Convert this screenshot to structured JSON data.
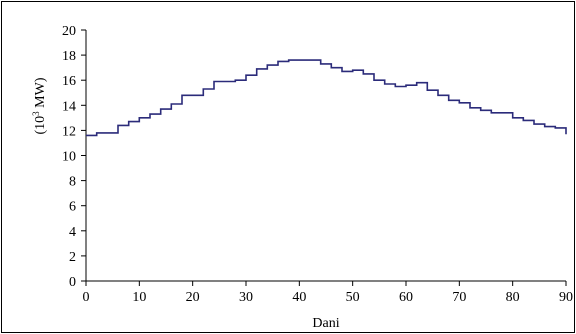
{
  "chart_data": {
    "type": "line",
    "step": true,
    "title": "",
    "xlabel": "Dani",
    "ylabel": "(10³ MW)",
    "ylabel_parts": {
      "prefix": "(10",
      "sup": "3",
      "suffix": " MW)"
    },
    "xlim": [
      0,
      90
    ],
    "ylim": [
      0,
      20
    ],
    "xticks": [
      0,
      10,
      20,
      30,
      40,
      50,
      60,
      70,
      80,
      90
    ],
    "yticks": [
      0,
      2,
      4,
      6,
      8,
      10,
      12,
      14,
      16,
      18,
      20
    ],
    "grid": false,
    "legend": "none",
    "colors": {
      "line": "#2b2b7a",
      "axis": "#000000",
      "frame": "#000000"
    },
    "series": [
      {
        "x": [
          0,
          2,
          6,
          8,
          10,
          12,
          14,
          16,
          18,
          20,
          22,
          24,
          28,
          30,
          32,
          34,
          36,
          38,
          42,
          44,
          46,
          48,
          50,
          52,
          54,
          56,
          58,
          60,
          62,
          64,
          66,
          68,
          70,
          72,
          74,
          76,
          80,
          82,
          84,
          86,
          88,
          90
        ],
        "values": [
          11.6,
          11.8,
          12.4,
          12.7,
          13.0,
          13.3,
          13.7,
          14.1,
          14.8,
          14.8,
          15.3,
          15.9,
          16.0,
          16.4,
          16.9,
          17.2,
          17.5,
          17.6,
          17.6,
          17.3,
          17.0,
          16.7,
          16.8,
          16.5,
          16.0,
          15.7,
          15.5,
          15.6,
          15.8,
          15.2,
          14.8,
          14.4,
          14.2,
          13.8,
          13.6,
          13.4,
          13.0,
          12.8,
          12.5,
          12.3,
          12.2,
          11.7
        ]
      }
    ]
  }
}
